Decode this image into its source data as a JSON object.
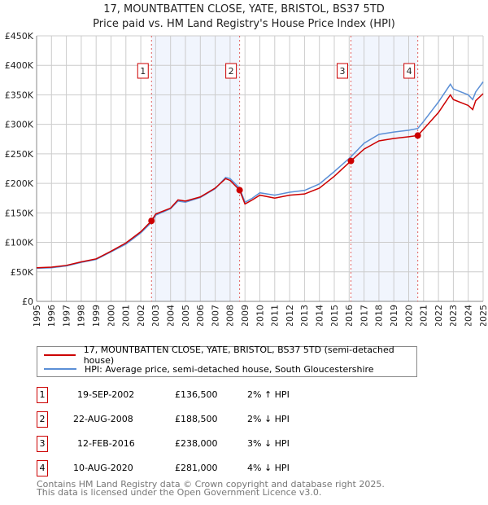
{
  "chart_data": {
    "type": "line",
    "title": "17, MOUNTBATTEN CLOSE, YATE, BRISTOL, BS37 5TD",
    "subtitle": "Price paid vs. HM Land Registry's House Price Index (HPI)",
    "xlim": [
      1995,
      2025
    ],
    "ylim": [
      0,
      450000
    ],
    "yticks": [
      "£0",
      "£50K",
      "£100K",
      "£150K",
      "£200K",
      "£250K",
      "£300K",
      "£350K",
      "£400K",
      "£450K"
    ],
    "xticks": [
      "1995",
      "1996",
      "1997",
      "1998",
      "1999",
      "2000",
      "2001",
      "2002",
      "2003",
      "2004",
      "2005",
      "2006",
      "2007",
      "2008",
      "2009",
      "2010",
      "2011",
      "2012",
      "2013",
      "2014",
      "2015",
      "2016",
      "2017",
      "2018",
      "2019",
      "2020",
      "2021",
      "2022",
      "2023",
      "2024",
      "2025"
    ],
    "grid": true,
    "series": [
      {
        "name": "17, MOUNTBATTEN CLOSE, YATE, BRISTOL, BS37 5TD (semi-detached house)",
        "color": "#cc0000",
        "x": [
          1995,
          1996,
          1997,
          1998,
          1999,
          2000,
          2001,
          2002,
          2002.72,
          2003,
          2004,
          2004.5,
          2005,
          2006,
          2007,
          2007.7,
          2008,
          2008.64,
          2009,
          2009.5,
          2010,
          2011,
          2012,
          2013,
          2014,
          2015,
          2016.12,
          2017,
          2018,
          2019,
          2020,
          2020.61,
          2021,
          2022,
          2022.8,
          2023,
          2024,
          2024.3,
          2024.5,
          2025
        ],
        "y": [
          57000,
          58000,
          61000,
          67000,
          72000,
          85000,
          99000,
          118000,
          136500,
          148000,
          158000,
          172000,
          170000,
          177000,
          192000,
          208000,
          205000,
          188500,
          165000,
          172000,
          180000,
          175000,
          180000,
          182000,
          192000,
          212000,
          238000,
          258000,
          272000,
          276000,
          279000,
          281000,
          292000,
          320000,
          350000,
          342000,
          332000,
          325000,
          340000,
          352000
        ]
      },
      {
        "name": "HPI: Average price, semi-detached house, South Gloucestershire",
        "color": "#5b8fd6",
        "x": [
          1995,
          1996,
          1997,
          1998,
          1999,
          2000,
          2001,
          2002,
          2002.72,
          2003,
          2004,
          2004.5,
          2005,
          2006,
          2007,
          2007.7,
          2008,
          2008.64,
          2009,
          2009.5,
          2010,
          2011,
          2012,
          2013,
          2014,
          2015,
          2016.12,
          2017,
          2018,
          2019,
          2020,
          2020.61,
          2021,
          2022,
          2022.8,
          2023,
          2024,
          2024.3,
          2024.5,
          2025
        ],
        "y": [
          56000,
          57000,
          60000,
          66000,
          71000,
          84000,
          97000,
          116000,
          134000,
          146000,
          157000,
          170000,
          168000,
          176000,
          191000,
          210000,
          208000,
          192000,
          168000,
          175000,
          184000,
          180000,
          185000,
          188000,
          199000,
          220000,
          245000,
          268000,
          283000,
          287000,
          290000,
          293000,
          305000,
          338000,
          368000,
          360000,
          350000,
          342000,
          355000,
          372000
        ]
      }
    ],
    "sales": [
      {
        "n": "1",
        "x": 2002.72,
        "y": 136500
      },
      {
        "n": "2",
        "x": 2008.64,
        "y": 188500
      },
      {
        "n": "3",
        "x": 2016.12,
        "y": 238000
      },
      {
        "n": "4",
        "x": 2020.61,
        "y": 281000
      }
    ],
    "shaded": [
      [
        2002.72,
        2008.64
      ],
      [
        2016.12,
        2020.61
      ]
    ]
  },
  "legend": {
    "red": "17, MOUNTBATTEN CLOSE, YATE, BRISTOL, BS37 5TD (semi-detached house)",
    "blue": "HPI: Average price, semi-detached house, South Gloucestershire"
  },
  "table": [
    {
      "n": "1",
      "date": "19-SEP-2002",
      "price": "£136,500",
      "hpi": "2% ↑ HPI"
    },
    {
      "n": "2",
      "date": "22-AUG-2008",
      "price": "£188,500",
      "hpi": "2% ↓ HPI"
    },
    {
      "n": "3",
      "date": "12-FEB-2016",
      "price": "£238,000",
      "hpi": "3% ↓ HPI"
    },
    {
      "n": "4",
      "date": "10-AUG-2020",
      "price": "£281,000",
      "hpi": "4% ↓ HPI"
    }
  ],
  "footer": {
    "line1": "Contains HM Land Registry data © Crown copyright and database right 2025.",
    "line2": "This data is licensed under the Open Government Licence v3.0."
  }
}
